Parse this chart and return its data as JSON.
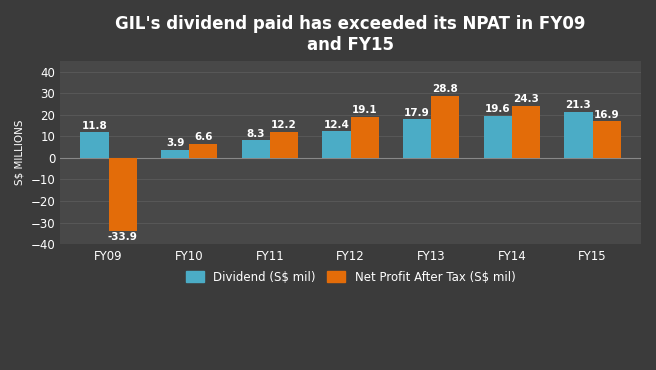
{
  "title": "GIL's dividend paid has exceeded its NPAT in FY09\nand FY15",
  "categories": [
    "FY09",
    "FY10",
    "FY11",
    "FY12",
    "FY13",
    "FY14",
    "FY15"
  ],
  "dividend": [
    11.8,
    3.9,
    8.3,
    12.4,
    17.9,
    19.6,
    21.3
  ],
  "npat": [
    -33.9,
    6.6,
    12.2,
    19.1,
    28.8,
    24.3,
    16.9
  ],
  "dividend_color": "#4BACC6",
  "npat_color": "#E36C09",
  "background_color": "#3B3B3B",
  "axes_color": "#484848",
  "text_color": "#FFFFFF",
  "ylabel": "S$ MILLIONS",
  "ylim": [
    -40,
    45
  ],
  "yticks": [
    -40,
    -30,
    -20,
    -10,
    0,
    10,
    20,
    30,
    40
  ],
  "legend_dividend": "Dividend (S$ mil)",
  "legend_npat": "Net Profit After Tax (S$ mil)",
  "bar_width": 0.35,
  "title_fontsize": 12,
  "label_fontsize": 7.5,
  "tick_fontsize": 8.5,
  "ylabel_fontsize": 7.5,
  "legend_fontsize": 8.5
}
